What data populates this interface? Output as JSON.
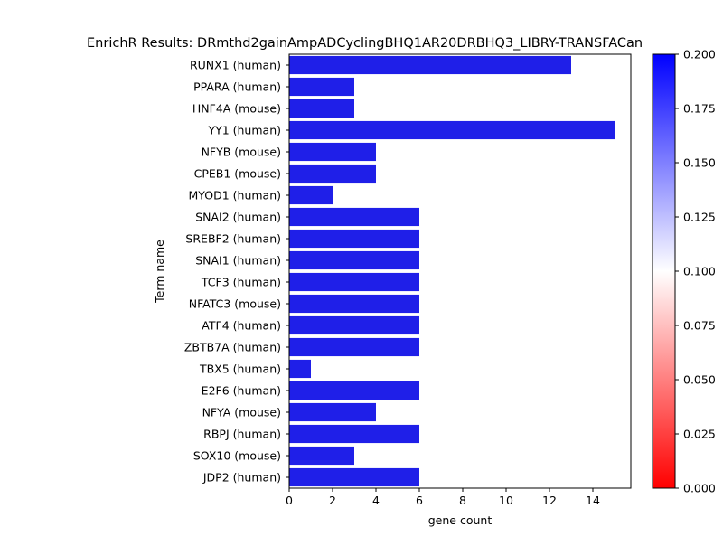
{
  "chart_data": {
    "type": "bar",
    "orientation": "horizontal",
    "title": "EnrichR Results: DRmthd2gainAmpADCyclingBHQ1AR20DRBHQ3_LIBRY-TRANSFACan",
    "xlabel": "gene count",
    "ylabel": "Term name",
    "xlim": [
      0,
      15.75
    ],
    "xticks": [
      0,
      2,
      4,
      6,
      8,
      10,
      12,
      14
    ],
    "categories": [
      "RUNX1 (human)",
      "PPARA (human)",
      "HNF4A (mouse)",
      "YY1 (human)",
      "NFYB (mouse)",
      "CPEB1 (mouse)",
      "MYOD1 (human)",
      "SNAI2 (human)",
      "SREBF2 (human)",
      "SNAI1 (human)",
      "TCF3 (human)",
      "NFATC3 (mouse)",
      "ATF4 (human)",
      "ZBTB7A (human)",
      "TBX5 (human)",
      "E2F6 (human)",
      "NFYA (mouse)",
      "RBPJ (human)",
      "SOX10 (mouse)",
      "JDP2 (human)"
    ],
    "values": [
      13,
      3,
      3,
      15,
      4,
      4,
      2,
      6,
      6,
      6,
      6,
      6,
      6,
      6,
      1,
      6,
      4,
      6,
      3,
      6
    ],
    "bar_color": "#1f1fe8",
    "colorbar": {
      "min": 0.0,
      "max": 0.2,
      "ticks": [
        "0.000",
        "0.025",
        "0.050",
        "0.075",
        "0.100",
        "0.125",
        "0.150",
        "0.175",
        "0.200"
      ],
      "colors": [
        "#ff0000",
        "#ffffff",
        "#0000ff"
      ]
    },
    "grid": false,
    "legend": "none"
  }
}
